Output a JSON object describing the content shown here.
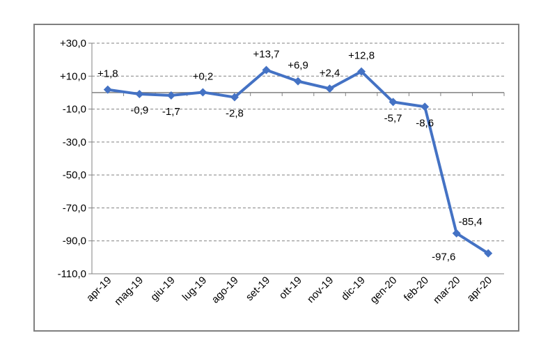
{
  "chart_data": {
    "type": "line",
    "categories": [
      "apr-19",
      "mag-19",
      "giu-19",
      "lug-19",
      "ago-19",
      "set-19",
      "ott-19",
      "nov-19",
      "dic-19",
      "gen-20",
      "feb-20",
      "mar-20",
      "apr-20"
    ],
    "series": [
      {
        "values": [
          1.8,
          -0.9,
          -1.7,
          0.2,
          -2.8,
          13.7,
          6.9,
          2.4,
          12.8,
          -5.7,
          -8.6,
          -85.4,
          -97.6
        ],
        "labels": [
          "+1,8",
          "-0,9",
          "-1,7",
          "+0,2",
          "-2,8",
          "+13,7",
          "+6,9",
          "+2,4",
          "+12,8",
          "-5,7",
          "-8,6",
          "-85,4",
          "-97,6"
        ],
        "color": "#4472c4"
      }
    ],
    "yticks": [
      30,
      10,
      -10,
      -30,
      -50,
      -70,
      -90,
      -110
    ],
    "ytick_labels": [
      "+30,0",
      "+10,0",
      "-10,0",
      "-30,0",
      "-50,0",
      "-70,0",
      "-90,0",
      "-110,0"
    ],
    "ylim": [
      -110,
      30
    ],
    "grid": "horizontal-dashed",
    "title": "",
    "xlabel": "",
    "ylabel": "",
    "colors": {
      "line": "#4472c4",
      "zero_line": "#d9a05b",
      "grid": "#808080",
      "frame": "#7f7f7f"
    }
  }
}
